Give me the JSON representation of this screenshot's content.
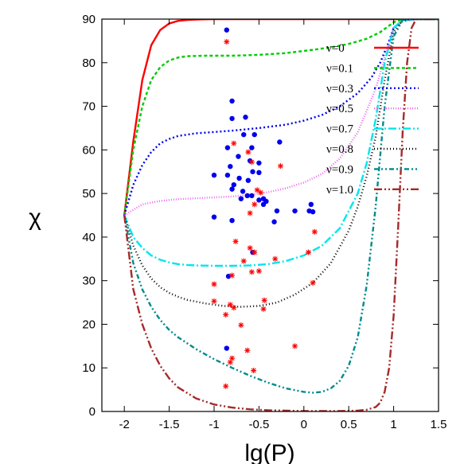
{
  "chart_data": {
    "type": "line",
    "xlabel": "lg(P)",
    "ylabel": "χ",
    "xlim": [
      -2.25,
      1.5
    ],
    "ylim": [
      0,
      90
    ],
    "xticks": [
      "-2",
      "-1.5",
      "-1",
      "-0.5",
      "0",
      "0.5",
      "1",
      "1.5"
    ],
    "yticks": [
      "0",
      "10",
      "20",
      "30",
      "40",
      "50",
      "60",
      "70",
      "80",
      "90"
    ],
    "grid": false,
    "legend_position": "top-right",
    "series": [
      {
        "name": "ν=0",
        "color": "#ff0000",
        "dash": "solid",
        "x": [
          -2,
          -1.9,
          -1.8,
          -1.7,
          -1.6,
          -1.5,
          -1.4,
          -1.3,
          -1.2,
          -1.0,
          -0.5,
          0,
          0.5,
          1.0,
          1.5
        ],
        "y": [
          45,
          62,
          76,
          84,
          87.5,
          89,
          89.6,
          89.8,
          89.9,
          90,
          90,
          90,
          90,
          90,
          90
        ]
      },
      {
        "name": "ν=0.1",
        "color": "#00cc00",
        "dash": "4 3",
        "x": [
          -2,
          -1.9,
          -1.8,
          -1.7,
          -1.6,
          -1.5,
          -1.4,
          -1.3,
          -1.1,
          -0.8,
          -0.5,
          -0.2,
          0,
          0.3,
          0.5,
          0.7,
          0.85,
          0.95,
          1.0,
          1.1,
          1.25,
          1.5
        ],
        "y": [
          45,
          60,
          70,
          76,
          79,
          80.5,
          81.2,
          81.5,
          81.6,
          81.6,
          81.8,
          82.2,
          82.7,
          83.5,
          84.3,
          85.5,
          87,
          88.5,
          89.3,
          89.8,
          90,
          90
        ]
      },
      {
        "name": "ν=0.3",
        "color": "#0000ee",
        "dash": "2 3",
        "x": [
          -2,
          -1.9,
          -1.8,
          -1.7,
          -1.6,
          -1.5,
          -1.4,
          -1.2,
          -1.0,
          -0.8,
          -0.5,
          -0.2,
          0,
          0.2,
          0.4,
          0.6,
          0.75,
          0.85,
          0.95,
          1.0,
          1.1,
          1.25,
          1.5
        ],
        "y": [
          45,
          52,
          56.5,
          59.5,
          61.5,
          62.5,
          63.2,
          63.8,
          64.1,
          64.4,
          65,
          65.8,
          66.7,
          68,
          70,
          73,
          76.5,
          80,
          85,
          88,
          89.6,
          90,
          90
        ]
      },
      {
        "name": "ν=0.5",
        "color": "#ee66ee",
        "dash": "1 2",
        "x": [
          -2,
          -1.8,
          -1.6,
          -1.4,
          -1.2,
          -1.0,
          -0.8,
          -0.6,
          -0.4,
          -0.2,
          0,
          0.2,
          0.4,
          0.6,
          0.8,
          0.9,
          1.0,
          1.1,
          1.25,
          1.5
        ],
        "y": [
          45,
          47.5,
          48.3,
          48.7,
          48.9,
          49.1,
          49.3,
          49.7,
          50.3,
          51.2,
          52.5,
          54.5,
          58,
          64,
          74,
          81,
          88,
          89.8,
          90,
          90
        ]
      },
      {
        "name": "ν=0.7",
        "color": "#00e5ee",
        "dash": "10 3 2 3",
        "x": [
          -2,
          -1.9,
          -1.8,
          -1.7,
          -1.6,
          -1.5,
          -1.4,
          -1.3,
          -1.2,
          -1.0,
          -0.8,
          -0.6,
          -0.4,
          -0.2,
          0,
          0.2,
          0.4,
          0.6,
          0.7,
          0.8,
          0.9,
          1.0,
          1.1,
          1.25,
          1.5
        ],
        "y": [
          45,
          40,
          37.5,
          35.8,
          34.8,
          34.2,
          33.8,
          33.6,
          33.5,
          33.4,
          33.4,
          33.5,
          33.8,
          34.5,
          35.8,
          38,
          42,
          50,
          57,
          67,
          80,
          88,
          89.8,
          90,
          90
        ]
      },
      {
        "name": "ν=0.8",
        "color": "#000000",
        "dash": "1 3",
        "x": [
          -2,
          -1.9,
          -1.8,
          -1.7,
          -1.6,
          -1.5,
          -1.4,
          -1.3,
          -1.1,
          -0.9,
          -0.7,
          -0.5,
          -0.3,
          -0.1,
          0.1,
          0.3,
          0.5,
          0.6,
          0.7,
          0.8,
          0.9,
          1.0,
          1.1,
          1.25,
          1.5
        ],
        "y": [
          45,
          38,
          33.5,
          30.5,
          28.5,
          27.2,
          26.3,
          25.6,
          24.8,
          24.2,
          24,
          24.2,
          25,
          26.8,
          29.5,
          34,
          41.5,
          47,
          54,
          63,
          76,
          87,
          89.8,
          90,
          90
        ]
      },
      {
        "name": "ν=0.9",
        "color": "#008b8b",
        "dash": "6 3 2 3 2 3",
        "x": [
          -2,
          -1.9,
          -1.8,
          -1.7,
          -1.6,
          -1.5,
          -1.4,
          -1.2,
          -1.0,
          -0.8,
          -0.6,
          -0.4,
          -0.2,
          0,
          0.1,
          0.2,
          0.3,
          0.4,
          0.5,
          0.6,
          0.7,
          0.8,
          0.9,
          1.0,
          1.1,
          1.25,
          1.5
        ],
        "y": [
          45,
          34,
          28,
          24,
          21,
          18.7,
          17,
          14.3,
          12,
          10,
          8.2,
          6.6,
          5.3,
          4.5,
          4.3,
          4.5,
          5.3,
          7,
          10.5,
          17,
          29,
          47,
          70,
          86,
          89.8,
          90,
          90
        ]
      },
      {
        "name": "ν=1.0",
        "color": "#a52a2a",
        "dash": "10 3 2 3 2 3",
        "x": [
          -2,
          -1.9,
          -1.8,
          -1.7,
          -1.6,
          -1.5,
          -1.4,
          -1.2,
          -1.0,
          -0.8,
          -0.6,
          -0.4,
          -0.2,
          0,
          0.2,
          0.4,
          0.6,
          0.7,
          0.8,
          0.85,
          0.9,
          0.95,
          1.0,
          1.05,
          1.1,
          1.15,
          1.2,
          1.25,
          1.5
        ],
        "y": [
          45,
          28,
          20,
          14.5,
          10.5,
          7.6,
          5.5,
          3,
          1.6,
          0.9,
          0.5,
          0.3,
          0.2,
          0.1,
          0.1,
          0.1,
          0.2,
          0.4,
          1,
          2,
          4.5,
          10,
          22,
          42,
          64,
          80,
          88,
          90,
          90
        ]
      }
    ],
    "markers": [
      {
        "name": "",
        "shape": "circle",
        "color": "#0000ee",
        "points": [
          [
            -0.86,
            87.5
          ],
          [
            -0.8,
            71.2
          ],
          [
            -0.65,
            67.5
          ],
          [
            -0.8,
            67.2
          ],
          [
            -0.67,
            63.5
          ],
          [
            -0.55,
            63.5
          ],
          [
            -0.85,
            60.5
          ],
          [
            -0.27,
            61.8
          ],
          [
            -0.58,
            60.5
          ],
          [
            -0.73,
            58.5
          ],
          [
            -0.6,
            57.5
          ],
          [
            -0.82,
            56.2
          ],
          [
            -0.5,
            57
          ],
          [
            -0.57,
            55
          ],
          [
            -1.0,
            54.2
          ],
          [
            -0.85,
            54.2
          ],
          [
            -0.5,
            54.8
          ],
          [
            -0.72,
            53.5
          ],
          [
            -0.62,
            53
          ],
          [
            -0.78,
            52
          ],
          [
            -0.8,
            51
          ],
          [
            -0.68,
            50.5
          ],
          [
            -0.63,
            49.5
          ],
          [
            -0.58,
            49.5
          ],
          [
            -0.5,
            48.5
          ],
          [
            -0.7,
            48.8
          ],
          [
            -0.45,
            48.8
          ],
          [
            -0.42,
            48.2
          ],
          [
            -0.45,
            47.5
          ],
          [
            0.08,
            47.5
          ],
          [
            -0.3,
            46
          ],
          [
            -0.1,
            46
          ],
          [
            0.06,
            46
          ],
          [
            0.1,
            45.8
          ],
          [
            -1.0,
            44.6
          ],
          [
            -0.8,
            43.8
          ],
          [
            -0.33,
            43.5
          ],
          [
            -0.57,
            36.5
          ],
          [
            -0.84,
            31
          ],
          [
            -0.86,
            14.5
          ]
        ]
      },
      {
        "name": "",
        "shape": "asterisk",
        "color": "#ff0000",
        "points": [
          [
            -0.86,
            84.8
          ],
          [
            -0.78,
            61.5
          ],
          [
            -0.62,
            59.5
          ],
          [
            -0.58,
            57.2
          ],
          [
            -0.26,
            56.3
          ],
          [
            -0.52,
            50.8
          ],
          [
            -0.48,
            50.2
          ],
          [
            -0.55,
            47.5
          ],
          [
            -0.6,
            45.5
          ],
          [
            0.12,
            41.2
          ],
          [
            -0.76,
            39
          ],
          [
            -0.6,
            37.5
          ],
          [
            -0.55,
            36.5
          ],
          [
            0.05,
            36.5
          ],
          [
            -0.32,
            35
          ],
          [
            -0.67,
            34.5
          ],
          [
            -0.5,
            32.2
          ],
          [
            -0.58,
            32
          ],
          [
            -0.8,
            31.2
          ],
          [
            -1.0,
            29.2
          ],
          [
            0.1,
            29.5
          ],
          [
            -0.44,
            25.5
          ],
          [
            -1.0,
            25.3
          ],
          [
            -0.82,
            24.5
          ],
          [
            -0.45,
            23.5
          ],
          [
            -0.78,
            23.8
          ],
          [
            -0.87,
            22.2
          ],
          [
            -0.7,
            19.8
          ],
          [
            -0.1,
            15
          ],
          [
            -0.63,
            14
          ],
          [
            -0.8,
            12.2
          ],
          [
            -0.82,
            11.3
          ],
          [
            -0.56,
            9.4
          ],
          [
            -0.87,
            5.8
          ]
        ]
      }
    ]
  }
}
